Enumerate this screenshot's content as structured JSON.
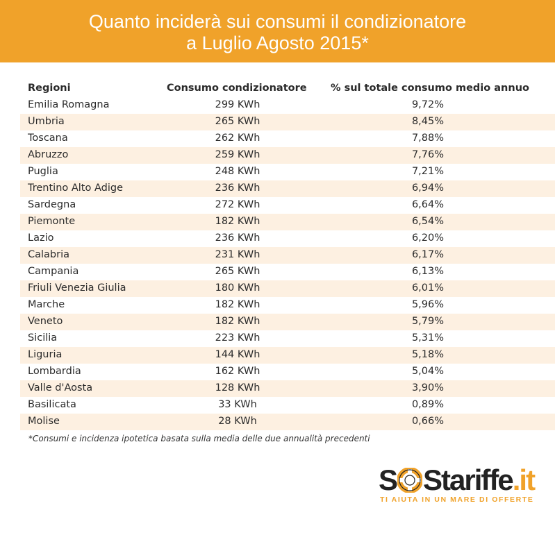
{
  "header": {
    "title_line1": "Quanto inciderà sui consumi il condizionatore",
    "title_line2": "a Luglio Agosto 2015*"
  },
  "chart_data": {
    "type": "table",
    "columns": [
      "Regioni",
      "Consumo condizionatore",
      "% sul totale consumo medio annuo"
    ],
    "rows": [
      [
        "Emilia Romagna",
        "299 KWh",
        "9,72%"
      ],
      [
        "Umbria",
        "265 KWh",
        "8,45%"
      ],
      [
        "Toscana",
        "262 KWh",
        "7,88%"
      ],
      [
        "Abruzzo",
        "259 KWh",
        "7,76%"
      ],
      [
        "Puglia",
        "248 KWh",
        "7,21%"
      ],
      [
        "Trentino Alto Adige",
        "236 KWh",
        "6,94%"
      ],
      [
        "Sardegna",
        "272 KWh",
        "6,64%"
      ],
      [
        "Piemonte",
        "182 KWh",
        "6,54%"
      ],
      [
        "Lazio",
        "236 KWh",
        "6,20%"
      ],
      [
        "Calabria",
        "231 KWh",
        "6,17%"
      ],
      [
        "Campania",
        "265 KWh",
        "6,13%"
      ],
      [
        "Friuli Venezia Giulia",
        "180 KWh",
        "6,01%"
      ],
      [
        "Marche",
        "182 KWh",
        "5,96%"
      ],
      [
        "Veneto",
        "182 KWh",
        "5,79%"
      ],
      [
        "Sicilia",
        "223 KWh",
        "5,31%"
      ],
      [
        "Liguria",
        "144 KWh",
        "5,18%"
      ],
      [
        "Lombardia",
        "162 KWh",
        "5,04%"
      ],
      [
        "Valle d'Aosta",
        "128 KWh",
        "3,90%"
      ],
      [
        "Basilicata",
        "33 KWh",
        "0,89%"
      ],
      [
        "Molise",
        "28 KWh",
        "0,66%"
      ]
    ]
  },
  "footnote": "*Consumi e incidenza ipotetica basata sulla media delle due annualità precedenti",
  "logo": {
    "part1": "S",
    "part2": "S",
    "part3": "tariffe",
    "part4": ".it",
    "tagline": "TI AIUTA IN UN MARE DI OFFERTE"
  },
  "colors": {
    "accent": "#f0a22a",
    "row_alt": "#fdf0e1"
  }
}
